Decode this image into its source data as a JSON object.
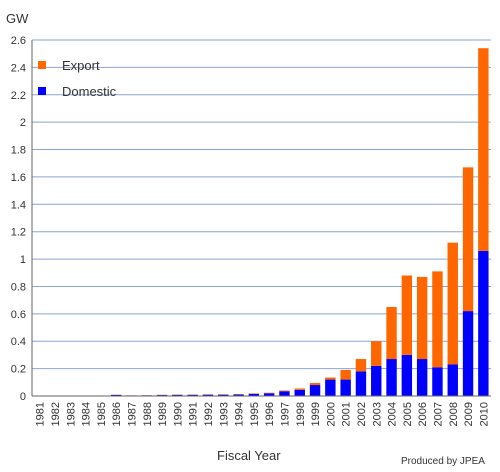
{
  "chart_data": {
    "type": "bar",
    "stacked": true,
    "ylabel": "GW",
    "xlabel": "Fiscal Year",
    "credit": "Produced by JPEA",
    "ylim": [
      0,
      2.6
    ],
    "ytick_step": 0.2,
    "ytick_labels": [
      "0",
      "0.2",
      "0.4",
      "0.6",
      "0.8",
      "1",
      "1.2",
      "1.4",
      "1.6",
      "1.8",
      "2",
      "2.2",
      "2.4",
      "2.6"
    ],
    "grid": true,
    "legend_position": "top-left",
    "categories": [
      "1981",
      "1982",
      "1983",
      "1984",
      "1985",
      "1986",
      "1987",
      "1988",
      "1989",
      "1990",
      "1991",
      "1992",
      "1993",
      "1994",
      "1995",
      "1996",
      "1997",
      "1998",
      "1999",
      "2000",
      "2001",
      "2002",
      "2003",
      "2004",
      "2005",
      "2006",
      "2007",
      "2008",
      "2009",
      "2010"
    ],
    "series": [
      {
        "name": "Domestic",
        "color": "#0000ff",
        "values": [
          0.002,
          0.002,
          0.002,
          0.002,
          0.003,
          0.008,
          0.004,
          0.005,
          0.007,
          0.009,
          0.009,
          0.01,
          0.01,
          0.011,
          0.016,
          0.02,
          0.035,
          0.045,
          0.08,
          0.12,
          0.12,
          0.18,
          0.22,
          0.27,
          0.3,
          0.27,
          0.21,
          0.23,
          0.62,
          1.06
        ]
      },
      {
        "name": "Export",
        "color": "#ff6600",
        "values": [
          0.001,
          0.001,
          0.001,
          0.001,
          0.001,
          0.002,
          0.001,
          0.001,
          0.002,
          0.002,
          0.002,
          0.002,
          0.002,
          0.002,
          0.003,
          0.004,
          0.005,
          0.01,
          0.015,
          0.015,
          0.07,
          0.09,
          0.18,
          0.38,
          0.58,
          0.6,
          0.7,
          0.89,
          1.05,
          1.48
        ]
      }
    ]
  }
}
